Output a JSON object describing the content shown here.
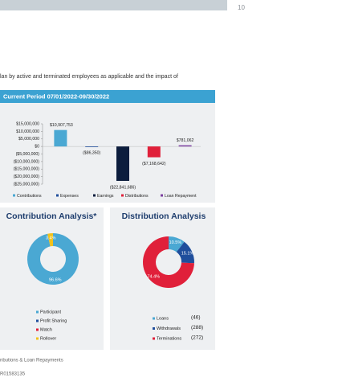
{
  "page_number": "10",
  "intro_text": "lan by active and terminated employees as applicable and the impact of",
  "footnote": "nbutions & Loan Repayments",
  "code": "R01583135",
  "chart_data": [
    {
      "type": "bar",
      "title": "Current Period 07/01/2022-09/30/2022",
      "categories": [
        "Contributions",
        "Expenses",
        "Earnings",
        "Distributions",
        "Loan Repayment"
      ],
      "values": [
        10907753,
        -86350,
        -22841686,
        -7168642,
        781062
      ],
      "value_labels": [
        "$10,907,753",
        "($86,350)",
        "($22,841,686)",
        "($7,168,642)",
        "$781,062"
      ],
      "colors": [
        "#4aa8d3",
        "#1f4e9c",
        "#0c1d3d",
        "#e0203a",
        "#7b3fa0"
      ],
      "ylim": [
        -25000000,
        15000000
      ],
      "yticks": [
        {
          "value": 15000000,
          "label": "$15,000,000"
        },
        {
          "value": 10000000,
          "label": "$10,000,000"
        },
        {
          "value": 5000000,
          "label": "$5,000,000"
        },
        {
          "value": 0,
          "label": "$0"
        },
        {
          "value": -5000000,
          "label": "($5,000,000)"
        },
        {
          "value": -10000000,
          "label": "($10,000,000)"
        },
        {
          "value": -15000000,
          "label": "($15,000,000)"
        },
        {
          "value": -20000000,
          "label": "($20,000,000)"
        },
        {
          "value": -25000000,
          "label": "($25,000,000)"
        }
      ],
      "legend": "bottom"
    },
    {
      "type": "pie",
      "title": "Contribution Analysis*",
      "categories": [
        "Participant",
        "Profit Sharing",
        "Match",
        "Rollover"
      ],
      "values": [
        96.6,
        0,
        0,
        3.4
      ],
      "value_labels": [
        "96.6%",
        null,
        null,
        "3.4%"
      ],
      "colors": [
        "#4aa8d3",
        "#1f4e9c",
        "#e0203a",
        "#f2c21b"
      ],
      "donut": true
    },
    {
      "type": "pie",
      "title": "Distribution Analysis",
      "categories": [
        "Loans",
        "Withdrawals",
        "Terminations"
      ],
      "values": [
        10.5,
        15.1,
        74.4
      ],
      "value_labels": [
        "10.5%",
        "15.1%",
        "74.4%"
      ],
      "counts": [
        "(46)",
        "(288)",
        "(272)"
      ],
      "colors": [
        "#4aa8d3",
        "#1f4e9c",
        "#e0203a"
      ],
      "donut": true
    }
  ]
}
